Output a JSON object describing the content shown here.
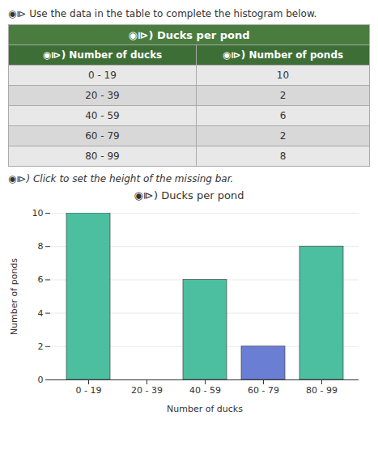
{
  "chart_data": {
    "type": "bar",
    "title": "◉⧐)  Ducks per pond",
    "categories": [
      "0 - 19",
      "20 - 39",
      "40 - 59",
      "60 - 79",
      "80 - 99"
    ],
    "values": [
      10,
      0,
      6,
      2,
      8
    ],
    "colors": [
      "#4bbfa0",
      null,
      "#4bbfa0",
      "#6a7fd4",
      "#4bbfa0"
    ],
    "xlabel": "Number of ducks",
    "ylabel": "Number of ponds",
    "ylim": [
      0,
      10
    ],
    "yticks": [
      0,
      2,
      4,
      6,
      8,
      10
    ],
    "grid": true,
    "annotations": [
      "◉⧐ Use the data in the table to complete the histogram below.",
      "◉⧐) Click to set the height of the missing bar."
    ],
    "table": {
      "title": "◉⧐)  Ducks per pond",
      "columns": [
        "◉⧐)  Number of ducks",
        "◉⧐)  Number of ponds"
      ],
      "rows": [
        [
          "0 - 19",
          "10"
        ],
        [
          "20 - 39",
          "2"
        ],
        [
          "40 - 59",
          "6"
        ],
        [
          "60 - 79",
          "2"
        ],
        [
          "80 - 99",
          "8"
        ]
      ]
    }
  }
}
